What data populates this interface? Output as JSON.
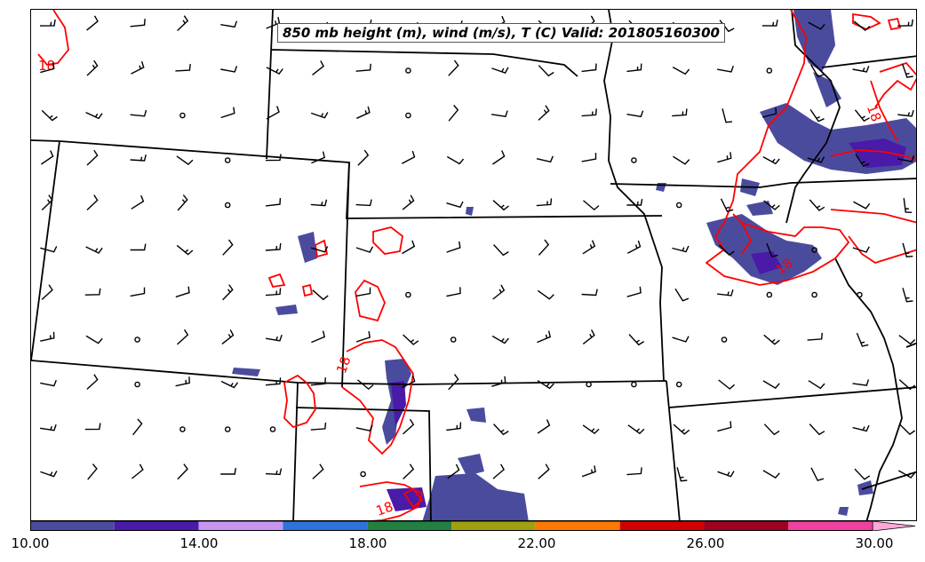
{
  "title": "850 mb height (m), wind (m/s), T (C) Valid: 201805160300",
  "contour_labels": [
    "18",
    "18",
    "18",
    "18",
    "18"
  ],
  "colorbar": {
    "min": 10.0,
    "max": 30.0,
    "extend": "max",
    "ticks": [
      "10.00",
      "14.00",
      "18.00",
      "22.00",
      "26.00",
      "30.00"
    ],
    "colors": [
      "#4b4b9e",
      "#4a1aa8",
      "#c896f0",
      "#2f72dc",
      "#238040",
      "#a0a010",
      "#ff7800",
      "#d20000",
      "#a00020",
      "#f040a0",
      "#ffa8d8"
    ]
  },
  "colors": {
    "temperature_contour": "#ff0000",
    "borders": "#000000",
    "shading": "#4b4b9e"
  },
  "wind_barbs": "grid of wind barbs and calm circles across map"
}
